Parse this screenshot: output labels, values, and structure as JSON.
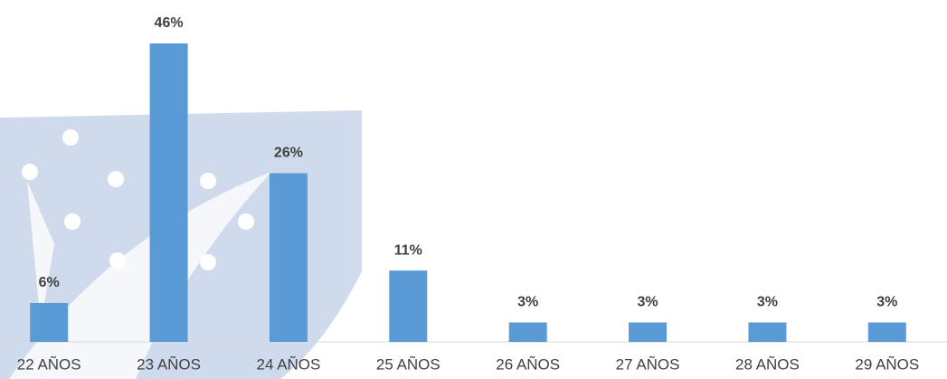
{
  "chart_data": {
    "type": "bar",
    "categories": [
      "22 AÑOS",
      "23 AÑOS",
      "24 AÑOS",
      "25 AÑOS",
      "26 AÑOS",
      "27 AÑOS",
      "28 AÑOS",
      "29 AÑOS"
    ],
    "values": [
      6,
      46,
      26,
      11,
      3,
      3,
      3,
      3
    ],
    "value_labels": [
      "6%",
      "46%",
      "26%",
      "11%",
      "3%",
      "3%",
      "3%",
      "3%"
    ],
    "color": "#5b9bd5"
  }
}
